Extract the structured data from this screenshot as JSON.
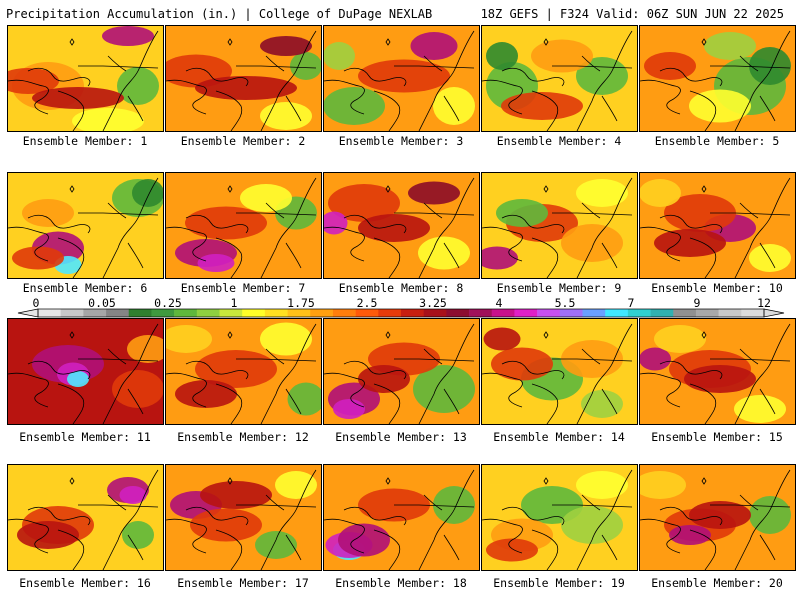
{
  "header": {
    "title_left": "Precipitation Accumulation (in.) | College of DuPage NEXLAB",
    "title_right": "18Z GEFS | F324 Valid: 06Z SUN JUN 22 2025"
  },
  "map": {
    "variable": "Precipitation Accumulation",
    "units": "in.",
    "model": "18Z GEFS",
    "forecast_hour": "F324",
    "valid": "06Z SUN JUN 22 2025",
    "source": "College of DuPage NEXLAB",
    "region": "Great Lakes / Northeast US"
  },
  "members": [
    {
      "label": "Ensemble Member: 1"
    },
    {
      "label": "Ensemble Member: 2"
    },
    {
      "label": "Ensemble Member: 3"
    },
    {
      "label": "Ensemble Member: 4"
    },
    {
      "label": "Ensemble Member: 5"
    },
    {
      "label": "Ensemble Member: 6"
    },
    {
      "label": "Ensemble Member: 7"
    },
    {
      "label": "Ensemble Member: 8"
    },
    {
      "label": "Ensemble Member: 9"
    },
    {
      "label": "Ensemble Member: 10"
    },
    {
      "label": "Ensemble Member: 11"
    },
    {
      "label": "Ensemble Member: 12"
    },
    {
      "label": "Ensemble Member: 13"
    },
    {
      "label": "Ensemble Member: 14"
    },
    {
      "label": "Ensemble Member: 15"
    },
    {
      "label": "Ensemble Member: 16"
    },
    {
      "label": "Ensemble Member: 17"
    },
    {
      "label": "Ensemble Member: 18"
    },
    {
      "label": "Ensemble Member: 19"
    },
    {
      "label": "Ensemble Member: 20"
    }
  ],
  "legend": {
    "labels": [
      "0",
      "0.05",
      "0.25",
      "1",
      "1.75",
      "2.5",
      "3.25",
      "4",
      "5.5",
      "7",
      "9",
      "12"
    ],
    "colors": [
      "#e6e6e6",
      "#c8c8c8",
      "#a6a6a6",
      "#858585",
      "#2f7f2f",
      "#3f9a3f",
      "#5fb83c",
      "#8fd040",
      "#c8e83c",
      "#ffff28",
      "#ffe020",
      "#ffc018",
      "#ffa010",
      "#ff7e0c",
      "#ff5a0a",
      "#e63a0a",
      "#c81e10",
      "#a8101a",
      "#8c0c30",
      "#a0105a",
      "#c8108c",
      "#e020c8",
      "#c850f0",
      "#a070f8",
      "#6aa0ff",
      "#40e8ff",
      "#30d0d0",
      "#30b0b0",
      "#909090",
      "#a8a8a8",
      "#c8c8c8",
      "#dcdcdc"
    ]
  },
  "palette": {
    "green_dark": "#2f8a2f",
    "green": "#5fb83c",
    "green_light": "#9fd040",
    "yellow": "#ffff30",
    "gold": "#ffd020",
    "orange": "#ff9c12",
    "orange_red": "#ff6a0a",
    "red": "#e03a0a",
    "dark_red": "#b81410",
    "maroon": "#8c0c28",
    "magenta": "#b01078",
    "purple": "#d020c0",
    "cyan": "#50e8ff"
  }
}
